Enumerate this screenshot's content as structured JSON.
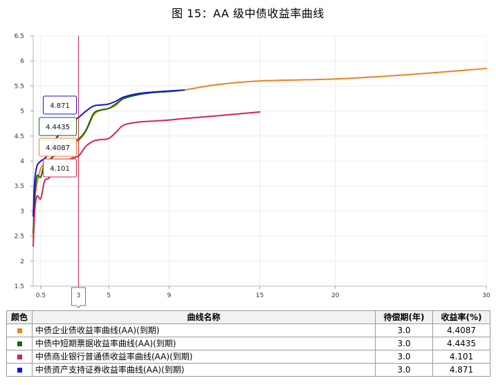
{
  "title": "图  15：AA 级中债收益率曲线",
  "chart_data": {
    "type": "line",
    "x_ticks": [
      0.5,
      3,
      5,
      9,
      15,
      20,
      30
    ],
    "y_ticks": [
      1.5,
      2,
      2.5,
      3,
      3.5,
      4,
      4.5,
      5,
      5.5,
      6,
      6.5
    ],
    "xlim": [
      0,
      30
    ],
    "ylim": [
      1.5,
      6.5
    ],
    "crosshair_x": 3,
    "crosshair_label": "3",
    "grid": true,
    "series": [
      {
        "name": "中债企业债收益率曲线(AA)(到期)",
        "color": "#f07f1c",
        "x": [
          0,
          0.1,
          0.25,
          0.5,
          0.75,
          1,
          1.5,
          2,
          2.5,
          3,
          3.5,
          4,
          4.5,
          5,
          5.5,
          6,
          7,
          8,
          9,
          10,
          12,
          15,
          20,
          25,
          30
        ],
        "y": [
          2.45,
          3.2,
          3.55,
          3.85,
          3.95,
          4.0,
          4.12,
          4.22,
          4.35,
          4.41,
          4.6,
          4.92,
          5.02,
          5.05,
          5.12,
          5.25,
          5.33,
          5.37,
          5.39,
          5.42,
          5.52,
          5.6,
          5.64,
          5.73,
          5.85
        ]
      },
      {
        "name": "中债中短期票据收益率曲线(AA)(到期)",
        "color": "#0f6b0f",
        "x": [
          0,
          0.1,
          0.25,
          0.5,
          0.75,
          1,
          1.5,
          2,
          2.5,
          3,
          3.5,
          4,
          4.5,
          5,
          5.5,
          6,
          7,
          8,
          9,
          10
        ],
        "y": [
          2.55,
          3.3,
          3.7,
          3.68,
          3.95,
          4.0,
          4.15,
          4.25,
          4.38,
          4.44,
          4.62,
          4.95,
          5.02,
          5.05,
          5.15,
          5.25,
          5.33,
          5.37,
          5.39,
          5.42
        ]
      },
      {
        "name": "中债商业银行普通债收益率曲线(AA)(到期)",
        "color": "#d4254a",
        "x": [
          0,
          0.1,
          0.25,
          0.5,
          0.75,
          1,
          1.5,
          2,
          2.5,
          3,
          3.5,
          4,
          4.5,
          5,
          5.5,
          6,
          7,
          8,
          9,
          10,
          12,
          15
        ],
        "y": [
          2.3,
          3.0,
          3.3,
          3.25,
          3.6,
          3.65,
          3.8,
          3.92,
          4.05,
          4.1,
          4.3,
          4.4,
          4.43,
          4.45,
          4.58,
          4.72,
          4.78,
          4.8,
          4.82,
          4.85,
          4.9,
          4.98
        ]
      },
      {
        "name": "中债资产支持证券收益率曲线(AA)(到期)",
        "color": "#1414d4",
        "x": [
          0,
          0.1,
          0.25,
          0.5,
          0.75,
          1,
          1.5,
          2,
          2.5,
          3,
          3.5,
          4,
          4.5,
          5,
          5.5,
          6,
          7,
          8,
          9,
          10
        ],
        "y": [
          2.9,
          3.6,
          3.9,
          4.0,
          4.05,
          4.15,
          4.45,
          4.6,
          4.78,
          4.87,
          5.0,
          5.1,
          5.12,
          5.14,
          5.2,
          5.28,
          5.35,
          5.38,
          5.4,
          5.42
        ]
      }
    ],
    "tooltips": [
      {
        "text": "4.871",
        "series": 3
      },
      {
        "text": "4.4435",
        "series": 1
      },
      {
        "text": "4.4087",
        "series": 0
      },
      {
        "text": "4.101",
        "series": 2
      }
    ]
  },
  "legend_table": {
    "headers": [
      "颜色",
      "曲线名称",
      "待偿期(年)",
      "收益率(%)"
    ],
    "rows": [
      {
        "color": "#f07f1c",
        "name": "中债企业债收益率曲线(AA)(到期)",
        "term": "3.0",
        "yield": "4.4087"
      },
      {
        "color": "#0f6b0f",
        "name": "中债中短期票据收益率曲线(AA)(到期)",
        "term": "3.0",
        "yield": "4.4435"
      },
      {
        "color": "#d4254a",
        "name": "中债商业银行普通债收益率曲线(AA)(到期)",
        "term": "3.0",
        "yield": "4.101"
      },
      {
        "color": "#1414d4",
        "name": "中债资产支持证券收益率曲线(AA)(到期)",
        "term": "3.0",
        "yield": "4.871"
      }
    ]
  }
}
